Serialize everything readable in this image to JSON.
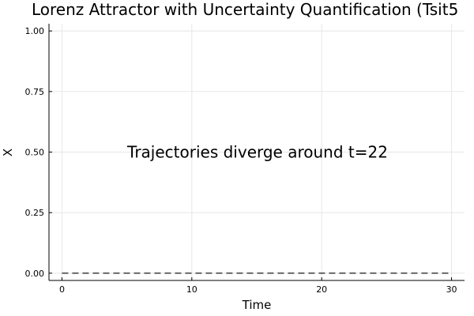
{
  "chart_data": {
    "type": "line",
    "title": "Lorenz Attractor with Uncertainty Quantification (Tsit5",
    "xlabel": "Time",
    "ylabel": "X",
    "xlim": [
      -1,
      31
    ],
    "ylim": [
      -0.03,
      1.03
    ],
    "x_ticks": [
      0,
      10,
      20,
      30
    ],
    "x_tick_labels": [
      "0",
      "10",
      "20",
      "30"
    ],
    "y_ticks": [
      0,
      0.25,
      0.5,
      0.75,
      1.0
    ],
    "y_tick_labels": [
      "0.00",
      "0.25",
      "0.50",
      "0.75",
      "1.00"
    ],
    "grid": true,
    "legend": "none",
    "annotations": [
      {
        "text": "Trajectories diverge around t=22",
        "x": 15,
        "y": 0.5
      }
    ],
    "series": [
      {
        "style": "dashed",
        "color": "#000000",
        "x": [
          0,
          30
        ],
        "y": [
          0,
          0
        ]
      }
    ]
  }
}
